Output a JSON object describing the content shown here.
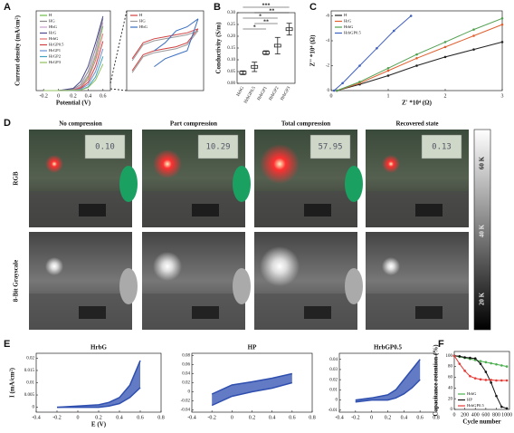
{
  "panel_labels": [
    "A",
    "B",
    "C",
    "D",
    "E",
    "F"
  ],
  "chart_data": [
    {
      "type": "line",
      "xlabel": "Potential (V)",
      "ylabel": "Current density (mA/cm²)",
      "xlim": [
        -0.3,
        0.7
      ],
      "xticks": [
        -0.2,
        0,
        0.2,
        0.4,
        0.6
      ],
      "ylim": [
        0,
        10.5
      ],
      "legend": "upper left",
      "x": [
        -0.2,
        0,
        0.2,
        0.3,
        0.4,
        0.5,
        0.6
      ],
      "series": [
        {
          "name": "H",
          "color": "#6abf4b",
          "values": [
            0,
            0,
            0.1,
            0.5,
            1.8,
            4.5,
            8.5
          ]
        },
        {
          "name": "HG",
          "color": "#888888",
          "values": [
            0,
            0,
            0.2,
            0.8,
            2.5,
            5.5,
            9.5
          ]
        },
        {
          "name": "HbG",
          "color": "#c8a0d0",
          "values": [
            0,
            0,
            0.1,
            0.6,
            2.0,
            4.8,
            9.0
          ]
        },
        {
          "name": "HrG",
          "color": "#4a4a8c",
          "values": [
            0,
            0,
            0.3,
            1.2,
            3.2,
            6.3,
            9.8
          ]
        },
        {
          "name": "HrbG",
          "color": "#e07070",
          "values": [
            0,
            0,
            0.1,
            0.4,
            1.5,
            4.0,
            7.5
          ]
        },
        {
          "name": "HrGP0.5",
          "color": "#d04040",
          "values": [
            0,
            0,
            0.05,
            0.3,
            1.1,
            3.2,
            6.5
          ]
        },
        {
          "name": "HrGP1",
          "color": "#6a8fd0",
          "values": [
            0,
            0,
            0.05,
            0.2,
            0.8,
            2.5,
            5.5
          ]
        },
        {
          "name": "HrGP2",
          "color": "#40a0c0",
          "values": [
            0,
            0,
            0.02,
            0.1,
            0.5,
            1.8,
            4.5
          ]
        },
        {
          "name": "HrGP3",
          "color": "#90c060",
          "values": [
            0,
            0,
            0.02,
            0.1,
            0.4,
            1.4,
            3.5
          ]
        }
      ]
    },
    {
      "type": "line",
      "xlim": [
        -0.7,
        0.7
      ],
      "ylim": [
        -1,
        1
      ],
      "legend": "upper left",
      "x": [
        -0.6,
        -0.4,
        -0.2,
        0,
        0.2,
        0.4,
        0.6
      ],
      "series": [
        {
          "name": "H",
          "color": "#d04040",
          "values": [
            -0.2,
            0.2,
            0.3,
            0.35,
            0.4,
            0.45,
            0.55
          ],
          "reverse": [
            -0.5,
            -0.1,
            0,
            0.05,
            0.1,
            0.2,
            0.55
          ]
        },
        {
          "name": "HG",
          "color": "#999999",
          "values": [
            -0.25,
            0.15,
            0.25,
            0.3,
            0.35,
            0.4,
            0.5
          ],
          "reverse": [
            -0.55,
            -0.15,
            -0.05,
            0,
            0.05,
            0.15,
            0.5
          ]
        },
        {
          "name": "HbG",
          "color": "#3a6fc0",
          "values": [
            null,
            null,
            0.0,
            0.2,
            0.5,
            0.6,
            0.8
          ],
          "reverse": [
            null,
            null,
            -0.4,
            -0.2,
            -0.1,
            0,
            0.8
          ]
        }
      ]
    },
    {
      "type": "box",
      "ylabel": "Conductivity (S/m)",
      "ylim": [
        0,
        0.3
      ],
      "yticks": [
        {
          "value": 0,
          "label": "0.00"
        },
        {
          "value": 0.05,
          "label": "0.05"
        },
        {
          "value": 0.1,
          "label": "0.10"
        },
        {
          "value": 0.15,
          "label": "0.15"
        },
        {
          "value": 0.2,
          "label": "0.20"
        },
        {
          "value": 0.25,
          "label": "0.25"
        },
        {
          "value": 0.3,
          "label": "0.30"
        }
      ],
      "categories": [
        "HrbG",
        "HrbGP0.5",
        "HrbGP1",
        "HrbGP2",
        "HrbGP3"
      ],
      "values": [
        0.045,
        0.07,
        0.13,
        0.16,
        0.23
      ],
      "errors": [
        0.008,
        0.02,
        0.008,
        0.035,
        0.025
      ],
      "color": "#222222",
      "annotations": [
        "***",
        "**",
        "*",
        "**",
        "*"
      ]
    },
    {
      "type": "line",
      "xlabel": "Z' *10⁴ (Ω)",
      "ylabel": "Z'' *10⁴ (Ω)",
      "xlim": [
        0,
        3
      ],
      "xticks": [
        0,
        1,
        2,
        3
      ],
      "ylim": [
        0,
        -6.4
      ],
      "yticks": [
        0,
        -2,
        -4,
        -6
      ],
      "legend": "upper left",
      "markers": true,
      "series": [
        {
          "name": "H",
          "color": "#222222",
          "x": [
            0.1,
            0.5,
            1,
            1.5,
            2,
            2.5,
            3
          ],
          "values": [
            0,
            -0.5,
            -1.2,
            -2,
            -2.7,
            -3.3,
            -3.9
          ]
        },
        {
          "name": "HrG",
          "color": "#e06030",
          "x": [
            0.1,
            0.5,
            1,
            1.5,
            2,
            2.5,
            3
          ],
          "values": [
            0,
            -0.6,
            -1.6,
            -2.6,
            -3.5,
            -4.4,
            -5.3
          ]
        },
        {
          "name": "HrbG",
          "color": "#50a050",
          "x": [
            0.1,
            0.5,
            1,
            1.5,
            2,
            2.5,
            3
          ],
          "values": [
            0,
            -0.7,
            -1.8,
            -2.9,
            -3.9,
            -4.9,
            -5.8
          ]
        },
        {
          "name": "HrbGP0.5",
          "color": "#4060c0",
          "x": [
            0.05,
            0.2,
            0.5,
            0.8,
            1.1,
            1.4
          ],
          "values": [
            0,
            -0.6,
            -2,
            -3.4,
            -4.8,
            -6
          ]
        }
      ]
    },
    {
      "type": "cv",
      "title": "HrbG",
      "xlabel": "E (V)",
      "ylabel": "I (mA/cm²)",
      "xlim": [
        -0.4,
        0.8
      ],
      "xticks": [
        -0.4,
        -0.2,
        0,
        0.2,
        0.4,
        0.6,
        0.8
      ],
      "ylim": [
        -0.002,
        0.022
      ],
      "yticks": [
        0,
        0.005,
        0.01,
        0.015,
        0.02
      ],
      "color": "#2f4fb0",
      "x": [
        -0.2,
        0,
        0.2,
        0.3,
        0.4,
        0.5,
        0.6
      ],
      "upper": [
        0,
        0.0005,
        0.001,
        0.002,
        0.004,
        0.009,
        0.019
      ],
      "lower": [
        0,
        0,
        0,
        0.0005,
        0.0015,
        0.004,
        0.008
      ]
    },
    {
      "type": "cv",
      "title": "HP",
      "xlim": [
        -0.4,
        0.8
      ],
      "xticks": [
        -0.4,
        -0.2,
        0,
        0.2,
        0.4,
        0.6,
        0.8
      ],
      "ylim": [
        -0.045,
        0.085
      ],
      "yticks": [
        -0.04,
        -0.02,
        0,
        0.02,
        0.04,
        0.06,
        0.08
      ],
      "color": "#2f4fb0",
      "x": [
        -0.2,
        0,
        0.2,
        0.4,
        0.6
      ],
      "upper": [
        -0.005,
        0.015,
        0.022,
        0.03,
        0.04
      ],
      "lower": [
        -0.03,
        -0.01,
        0,
        0.008,
        0.02
      ]
    },
    {
      "type": "cv",
      "title": "HrbGP0.5",
      "xlim": [
        -0.4,
        0.8
      ],
      "xticks": [
        -0.4,
        -0.2,
        0,
        0.2,
        0.4,
        0.6,
        0.8
      ],
      "ylim": [
        -0.012,
        0.046
      ],
      "yticks": [
        -0.01,
        0,
        0.01,
        0.02,
        0.03,
        0.04
      ],
      "color": "#2f4fb0",
      "x": [
        -0.2,
        0,
        0.2,
        0.3,
        0.4,
        0.5,
        0.6
      ],
      "upper": [
        0,
        0.002,
        0.005,
        0.01,
        0.02,
        0.03,
        0.04
      ],
      "lower": [
        -0.002,
        0,
        0,
        0.002,
        0.006,
        0.012,
        0.02
      ]
    },
    {
      "type": "line",
      "xlabel": "Cycle number",
      "ylabel": "Capacitance retention (%)",
      "xlim": [
        0,
        1050
      ],
      "xticks": [
        0,
        200,
        400,
        600,
        800,
        1000
      ],
      "ylim": [
        0,
        108
      ],
      "yticks": [
        0,
        20,
        40,
        60,
        80,
        100
      ],
      "legend": "lower left",
      "markers": true,
      "x": [
        0,
        100,
        200,
        300,
        400,
        500,
        600,
        700,
        800,
        900,
        1000
      ],
      "series": [
        {
          "name": "HrbG",
          "color": "#4caf50",
          "values": [
            100,
            98,
            96,
            94,
            92,
            90,
            88,
            86,
            84,
            82,
            80
          ]
        },
        {
          "name": "HP",
          "color": "#111111",
          "values": [
            100,
            99,
            97,
            96,
            95,
            85,
            70,
            50,
            25,
            5,
            2
          ]
        },
        {
          "name": "HrbGP0.5",
          "color": "#e53935",
          "values": [
            100,
            85,
            72,
            62,
            58,
            56,
            55,
            55,
            54,
            54,
            54
          ]
        }
      ]
    }
  ],
  "photo_panel": {
    "columns": [
      "No compression",
      "Part compression",
      "Total compression",
      "Recovered state"
    ],
    "rows": [
      "RGB",
      "8-Bit Grayscale"
    ],
    "readings": [
      "0.10",
      "10.29",
      "57.95",
      "0.13"
    ],
    "colorbar": [
      "60 K",
      "40 K",
      "20 K"
    ]
  }
}
